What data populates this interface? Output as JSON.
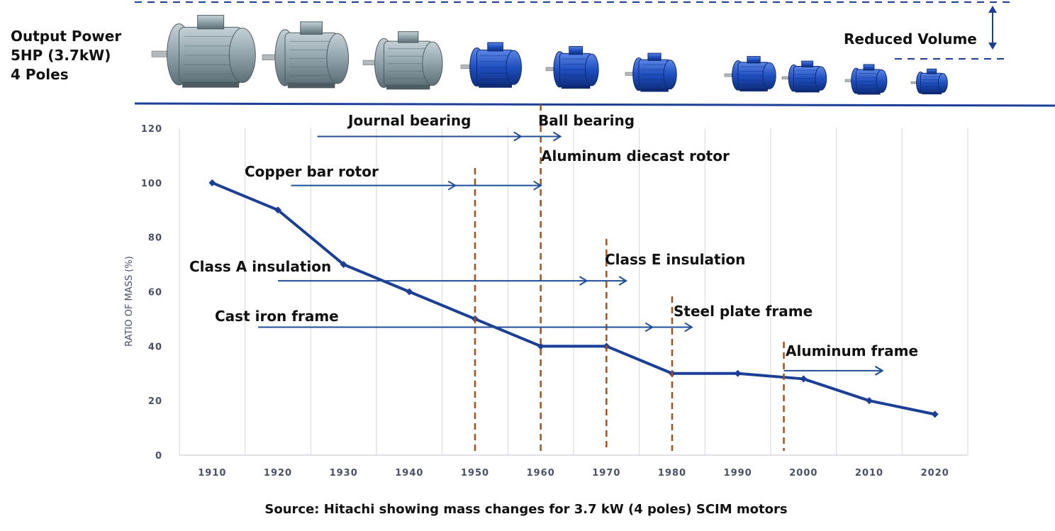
{
  "header": {
    "output_lines": [
      "Output Power",
      "5HP (3.7kW)",
      "4 Poles"
    ],
    "reduced_volume": "Reduced Volume",
    "motors": [
      {
        "icon": "motor-icon",
        "body_color": "#8fa2aa",
        "style": "old"
      },
      {
        "icon": "motor-icon",
        "body_color": "#8fa2aa",
        "style": "old"
      },
      {
        "icon": "motor-icon",
        "body_color": "#8fa2aa",
        "style": "old"
      },
      {
        "icon": "motor-icon",
        "body_color": "#1f4fc0",
        "style": "new"
      },
      {
        "icon": "motor-icon",
        "body_color": "#1f4fc0",
        "style": "new"
      },
      {
        "icon": "motor-icon",
        "body_color": "#1f4fc0",
        "style": "new"
      },
      {
        "icon": "motor-icon",
        "body_color": "#1f4fc0",
        "style": "new"
      },
      {
        "icon": "motor-icon",
        "body_color": "#1f4fc0",
        "style": "new"
      },
      {
        "icon": "motor-icon",
        "body_color": "#1f4fc0",
        "style": "new"
      },
      {
        "icon": "motor-icon",
        "body_color": "#1f4fc0",
        "style": "new"
      }
    ]
  },
  "chart_data": {
    "type": "line",
    "ylabel": "RATIO OF MASS (%)",
    "xlabel": "",
    "xlim": [
      1905,
      2025
    ],
    "ylim": [
      0,
      120
    ],
    "x_ticks": [
      "1910",
      "1920",
      "1930",
      "1940",
      "1950",
      "1960",
      "1970",
      "1980",
      "1990",
      "2000",
      "2010",
      "2020"
    ],
    "y_ticks": [
      "0",
      "20",
      "40",
      "60",
      "80",
      "100",
      "120"
    ],
    "grid": "vertical",
    "series": [
      {
        "x": [
          1910,
          1920,
          1930,
          1940,
          1950,
          1960,
          1970,
          1980,
          1990,
          2000,
          2010,
          2020
        ],
        "values": [
          100,
          90,
          70,
          60,
          50,
          40,
          40,
          30,
          30,
          28,
          20,
          15
        ]
      }
    ],
    "milestones_x": [
      1950,
      1960,
      1970,
      1980,
      1997
    ],
    "annotations": [
      {
        "text": "Journal bearing",
        "arrow_from": 1926,
        "arrow_to": 1963,
        "arrow_y": 117,
        "marker": 1957
      },
      {
        "text": "Ball bearing"
      },
      {
        "text": "Aluminum diecast rotor"
      },
      {
        "text": "Copper bar rotor",
        "arrow_from": 1922,
        "arrow_to": 1960,
        "arrow_y": 99,
        "marker": 1947
      },
      {
        "text": "Class A insulation",
        "arrow_from": 1920,
        "arrow_to": 1973,
        "arrow_y": 64,
        "marker": 1967
      },
      {
        "text": "Class E insulation"
      },
      {
        "text": "Cast iron frame",
        "arrow_from": 1917,
        "arrow_to": 1983,
        "arrow_y": 47,
        "marker": 1977
      },
      {
        "text": "Steel plate frame"
      },
      {
        "text": "Aluminum frame",
        "arrow_from": 1997,
        "arrow_to": 2012,
        "arrow_y": 31,
        "marker": 2012
      }
    ],
    "colors": {
      "line": "#1b3f96",
      "arrow": "#1f4e96",
      "milestone": "#a0521c",
      "grid": "#d3d6e0"
    },
    "source": "Source: Hitachi showing mass changes for 3.7 kW (4 poles) SCIM motors"
  }
}
